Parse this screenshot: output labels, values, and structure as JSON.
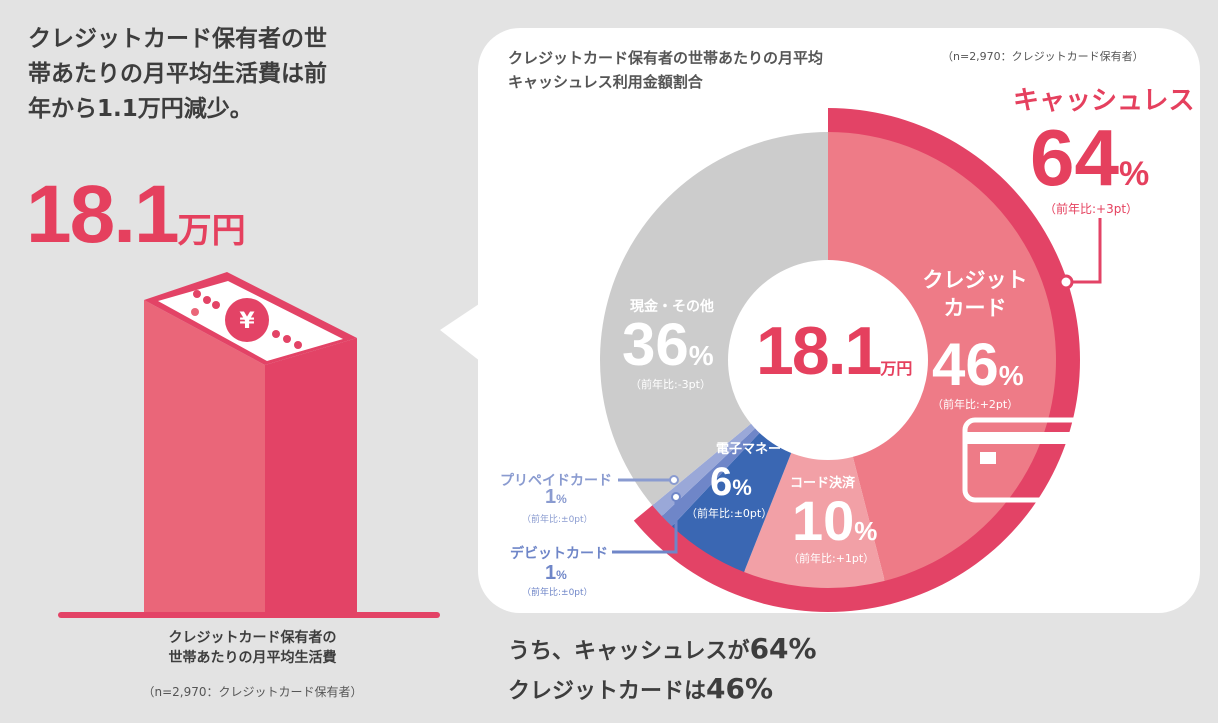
{
  "headline": "クレジットカード保有者の世帯あたりの月平均生活費は前年から1.1万円減少。",
  "total": {
    "value": "18.1",
    "unit": "万円"
  },
  "left_caption": {
    "line1": "クレジットカード保有者の",
    "line2": "世帯あたりの月平均生活費",
    "sample": "（n=2,970：クレジットカード保有者）"
  },
  "colors": {
    "accent": "#e5405e",
    "ring": "#e34366",
    "background": "#e3e3e3"
  },
  "bottom": {
    "line1_prefix": "うち、キャッシュレスが",
    "line1_value": "64%",
    "line2_prefix": "クレジットカードは",
    "line2_value": "46%"
  },
  "chart_data": {
    "type": "pie",
    "title": "クレジットカード保有者の世帯あたりの月平均キャッシュレス利用金額割合",
    "sample": "（n=2,970：クレジットカード保有者）",
    "center_label": {
      "value": "18.1",
      "unit": "万円"
    },
    "unit": "%",
    "slices": [
      {
        "label": "クレジットカード",
        "value": 46,
        "change": "（前年比:+2pt）",
        "color": "#ee7b87"
      },
      {
        "label": "コード決済",
        "value": 10,
        "change": "（前年比:+1pt）",
        "color": "#f2a0a6"
      },
      {
        "label": "電子マネー",
        "value": 6,
        "change": "（前年比:±0pt）",
        "color": "#3a67b3"
      },
      {
        "label": "デビットカード",
        "value": 1,
        "change": "（前年比:±0pt）",
        "color": "#6f86c8"
      },
      {
        "label": "プリペイドカード",
        "value": 1,
        "change": "（前年比:±0pt）",
        "color": "#9aa8d8"
      },
      {
        "label": "現金・その他",
        "value": 36,
        "change": "（前年比:-3pt）",
        "color": "#cccccc"
      }
    ],
    "group": {
      "label": "キャッシュレス",
      "value": 64,
      "change": "（前年比:+3pt）",
      "color": "#e34366"
    }
  }
}
